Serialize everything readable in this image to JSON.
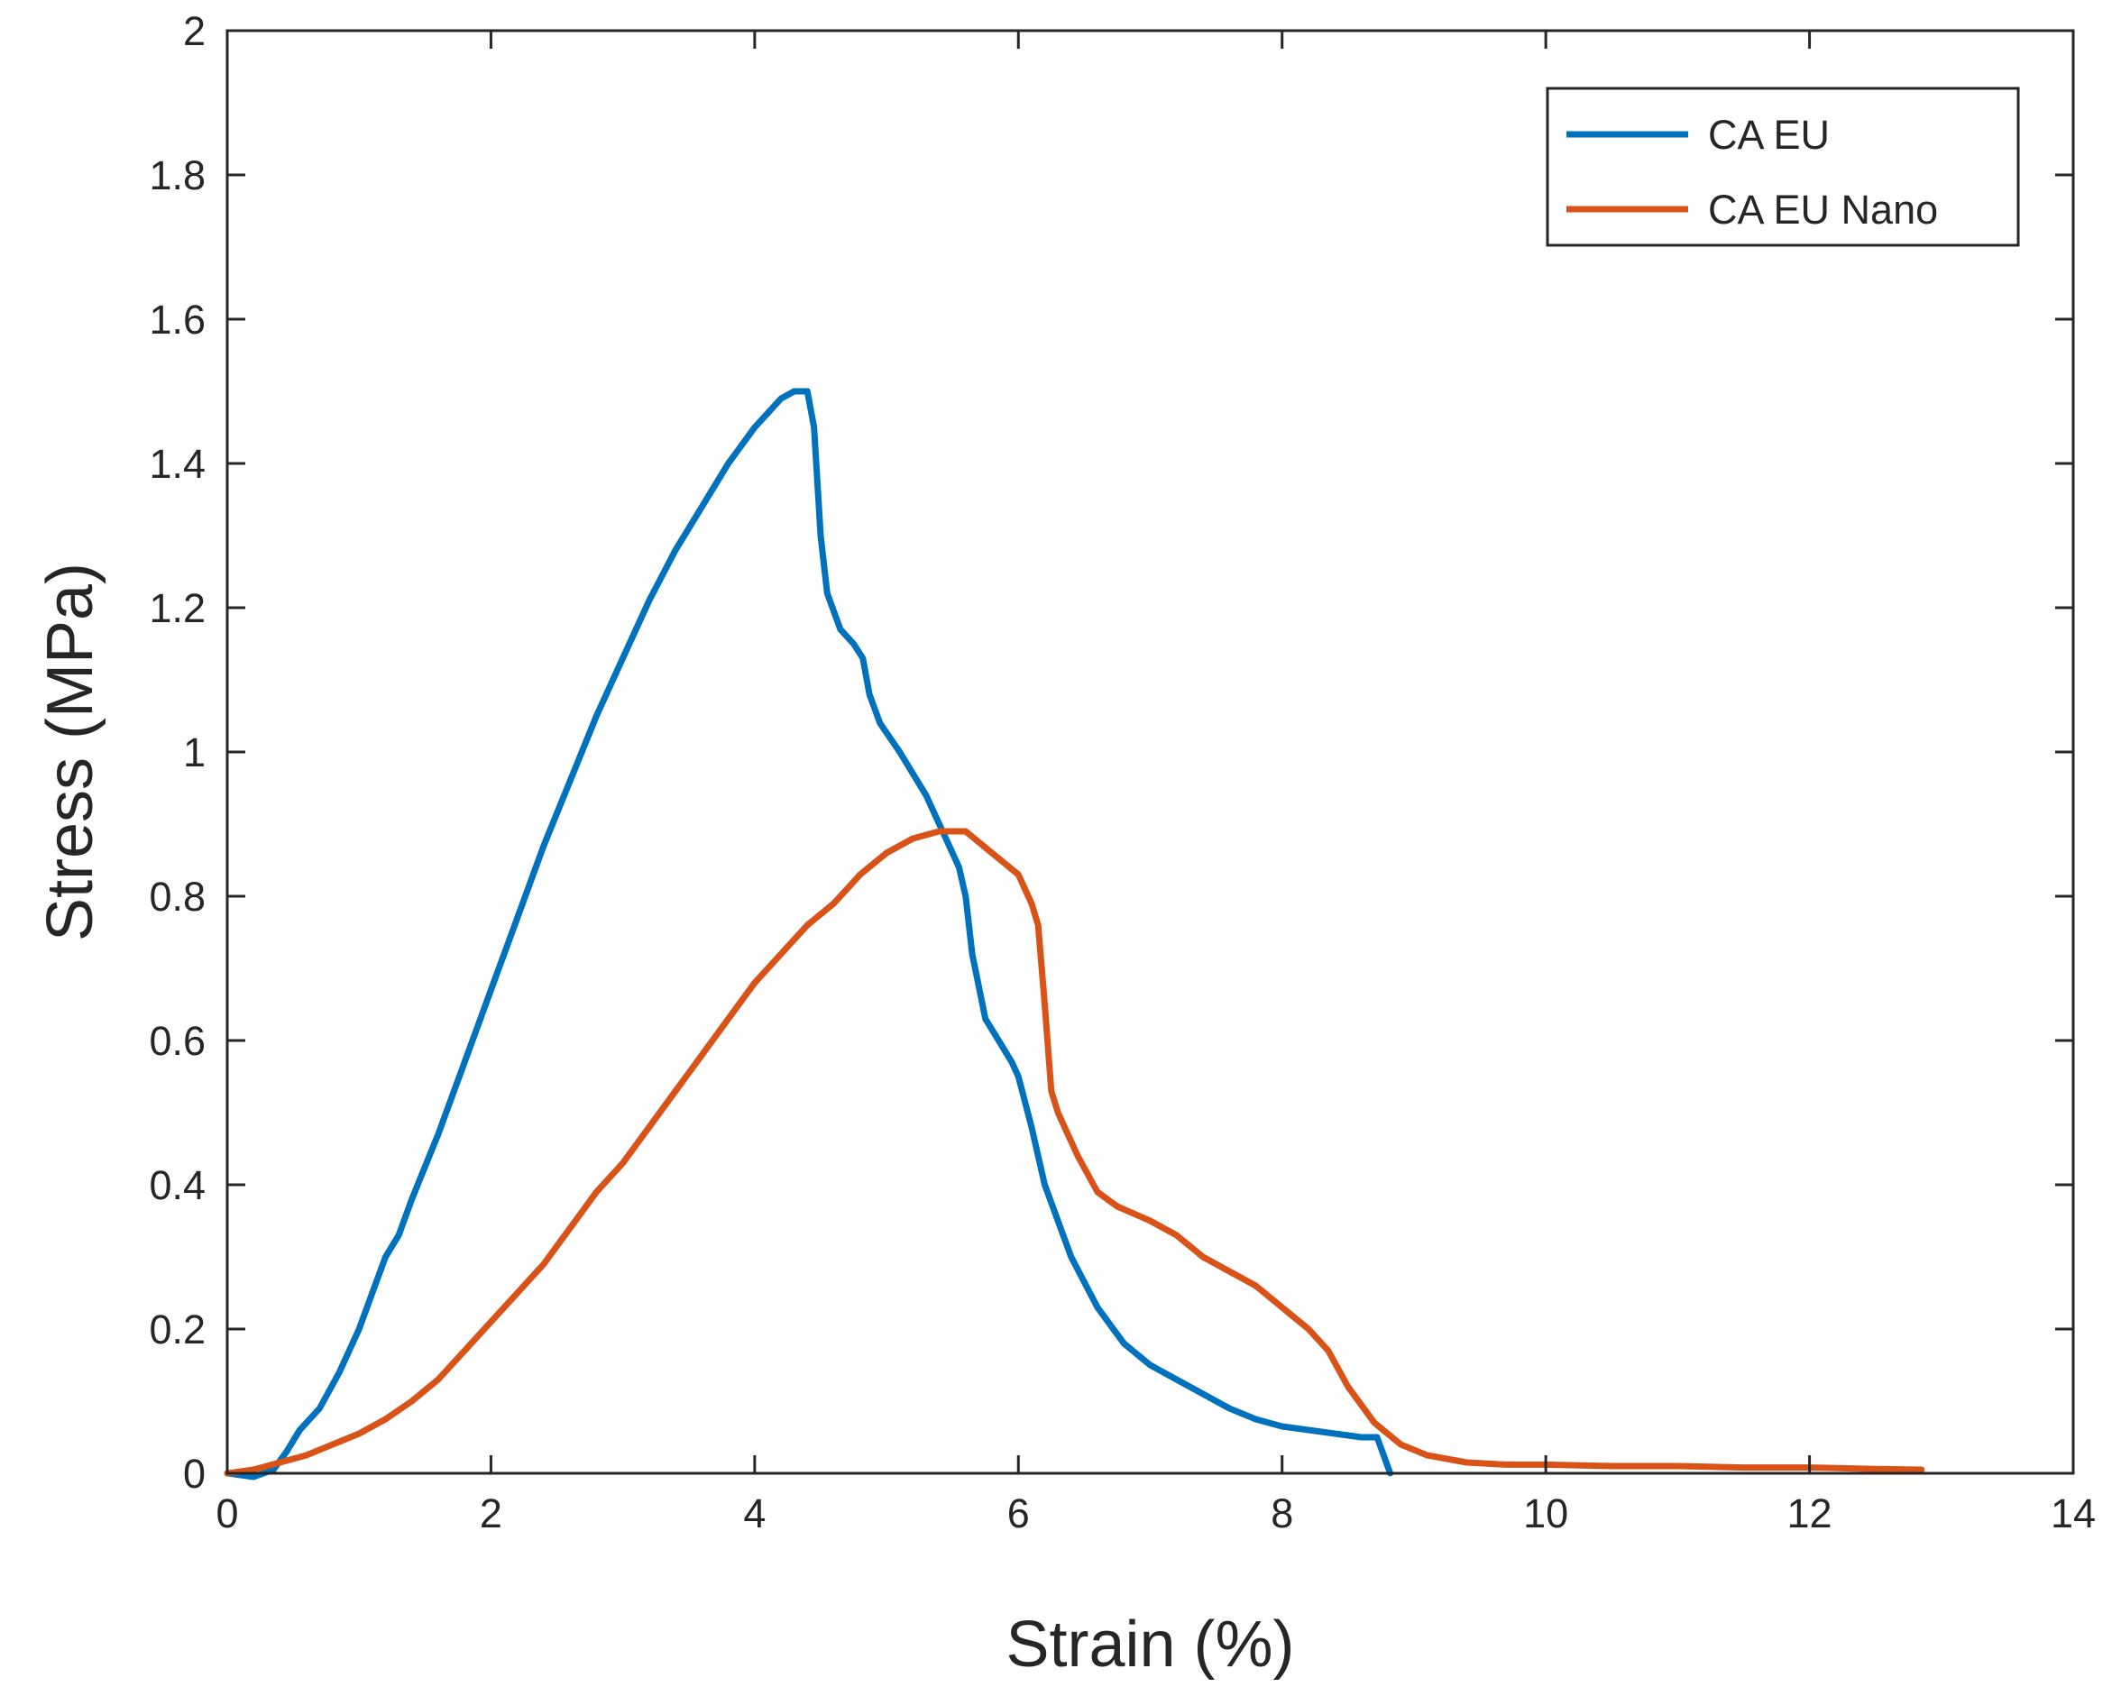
{
  "chart_data": {
    "type": "line",
    "title": "",
    "xlabel": "Strain (%)",
    "ylabel": "Stress (MPa)",
    "xlim": [
      0,
      14
    ],
    "ylim": [
      0,
      2
    ],
    "xticks": [
      0,
      2,
      4,
      6,
      8,
      10,
      12,
      14
    ],
    "yticks": [
      0,
      0.2,
      0.4,
      0.6,
      0.8,
      1,
      1.2,
      1.4,
      1.6,
      1.8,
      2
    ],
    "xtick_labels": [
      "0",
      "2",
      "4",
      "6",
      "8",
      "10",
      "12",
      "14"
    ],
    "ytick_labels": [
      "0",
      "0.2",
      "0.4",
      "0.6",
      "0.8",
      "1",
      "1.2",
      "1.4",
      "1.6",
      "1.8",
      "2"
    ],
    "grid": false,
    "legend_position": "top-right",
    "series": [
      {
        "name": "CA EU",
        "color": "#0072BD",
        "points": [
          [
            0.0,
            0.0
          ],
          [
            0.2,
            -0.005
          ],
          [
            0.35,
            0.005
          ],
          [
            0.45,
            0.03
          ],
          [
            0.55,
            0.06
          ],
          [
            0.7,
            0.09
          ],
          [
            0.85,
            0.14
          ],
          [
            1.0,
            0.2
          ],
          [
            1.1,
            0.25
          ],
          [
            1.2,
            0.3
          ],
          [
            1.3,
            0.33
          ],
          [
            1.4,
            0.38
          ],
          [
            1.6,
            0.47
          ],
          [
            1.8,
            0.57
          ],
          [
            2.0,
            0.67
          ],
          [
            2.2,
            0.77
          ],
          [
            2.4,
            0.87
          ],
          [
            2.6,
            0.96
          ],
          [
            2.8,
            1.05
          ],
          [
            3.0,
            1.13
          ],
          [
            3.2,
            1.21
          ],
          [
            3.4,
            1.28
          ],
          [
            3.6,
            1.34
          ],
          [
            3.8,
            1.4
          ],
          [
            4.0,
            1.45
          ],
          [
            4.2,
            1.49
          ],
          [
            4.3,
            1.5
          ],
          [
            4.4,
            1.5
          ],
          [
            4.45,
            1.45
          ],
          [
            4.5,
            1.3
          ],
          [
            4.55,
            1.22
          ],
          [
            4.65,
            1.17
          ],
          [
            4.75,
            1.15
          ],
          [
            4.82,
            1.13
          ],
          [
            4.87,
            1.08
          ],
          [
            4.95,
            1.04
          ],
          [
            5.1,
            1.0
          ],
          [
            5.3,
            0.94
          ],
          [
            5.45,
            0.88
          ],
          [
            5.55,
            0.84
          ],
          [
            5.6,
            0.8
          ],
          [
            5.65,
            0.72
          ],
          [
            5.75,
            0.63
          ],
          [
            5.85,
            0.6
          ],
          [
            5.95,
            0.57
          ],
          [
            6.0,
            0.55
          ],
          [
            6.1,
            0.48
          ],
          [
            6.2,
            0.4
          ],
          [
            6.4,
            0.3
          ],
          [
            6.6,
            0.23
          ],
          [
            6.8,
            0.18
          ],
          [
            7.0,
            0.15
          ],
          [
            7.2,
            0.13
          ],
          [
            7.4,
            0.11
          ],
          [
            7.6,
            0.09
          ],
          [
            7.8,
            0.075
          ],
          [
            8.0,
            0.065
          ],
          [
            8.2,
            0.06
          ],
          [
            8.4,
            0.055
          ],
          [
            8.6,
            0.05
          ],
          [
            8.72,
            0.05
          ],
          [
            8.78,
            0.02
          ],
          [
            8.82,
            0.0
          ]
        ]
      },
      {
        "name": "CA EU Nano",
        "color": "#D95319",
        "points": [
          [
            0.0,
            0.0
          ],
          [
            0.2,
            0.005
          ],
          [
            0.4,
            0.015
          ],
          [
            0.6,
            0.025
          ],
          [
            0.8,
            0.04
          ],
          [
            1.0,
            0.055
          ],
          [
            1.2,
            0.075
          ],
          [
            1.4,
            0.1
          ],
          [
            1.6,
            0.13
          ],
          [
            1.8,
            0.17
          ],
          [
            2.0,
            0.21
          ],
          [
            2.2,
            0.25
          ],
          [
            2.4,
            0.29
          ],
          [
            2.6,
            0.34
          ],
          [
            2.8,
            0.39
          ],
          [
            3.0,
            0.43
          ],
          [
            3.2,
            0.48
          ],
          [
            3.4,
            0.53
          ],
          [
            3.6,
            0.58
          ],
          [
            3.8,
            0.63
          ],
          [
            4.0,
            0.68
          ],
          [
            4.2,
            0.72
          ],
          [
            4.4,
            0.76
          ],
          [
            4.6,
            0.79
          ],
          [
            4.8,
            0.83
          ],
          [
            5.0,
            0.86
          ],
          [
            5.2,
            0.88
          ],
          [
            5.4,
            0.89
          ],
          [
            5.6,
            0.89
          ],
          [
            5.8,
            0.86
          ],
          [
            6.0,
            0.83
          ],
          [
            6.1,
            0.79
          ],
          [
            6.15,
            0.76
          ],
          [
            6.2,
            0.65
          ],
          [
            6.25,
            0.53
          ],
          [
            6.3,
            0.5
          ],
          [
            6.45,
            0.44
          ],
          [
            6.6,
            0.39
          ],
          [
            6.75,
            0.37
          ],
          [
            7.0,
            0.35
          ],
          [
            7.2,
            0.33
          ],
          [
            7.4,
            0.3
          ],
          [
            7.6,
            0.28
          ],
          [
            7.8,
            0.26
          ],
          [
            8.0,
            0.23
          ],
          [
            8.2,
            0.2
          ],
          [
            8.35,
            0.17
          ],
          [
            8.5,
            0.12
          ],
          [
            8.7,
            0.07
          ],
          [
            8.9,
            0.04
          ],
          [
            9.1,
            0.025
          ],
          [
            9.4,
            0.015
          ],
          [
            9.7,
            0.012
          ],
          [
            10.0,
            0.012
          ],
          [
            10.5,
            0.01
          ],
          [
            11.0,
            0.01
          ],
          [
            11.5,
            0.008
          ],
          [
            12.0,
            0.008
          ],
          [
            12.5,
            0.006
          ],
          [
            12.85,
            0.005
          ]
        ]
      }
    ]
  }
}
